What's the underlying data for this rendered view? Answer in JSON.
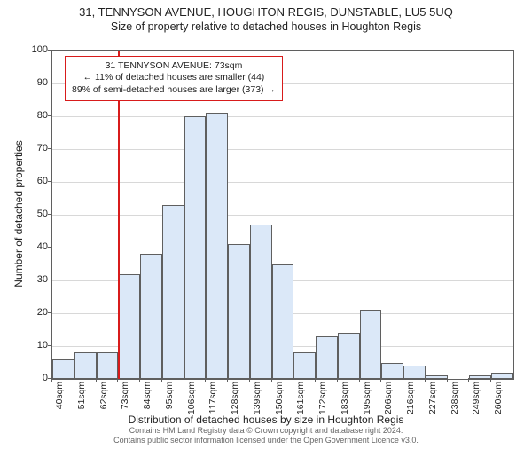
{
  "title": "31, TENNYSON AVENUE, HOUGHTON REGIS, DUNSTABLE, LU5 5UQ",
  "subtitle": "Size of property relative to detached houses in Houghton Regis",
  "ylabel": "Number of detached properties",
  "xlabel": "Distribution of detached houses by size in Houghton Regis",
  "footer_line1": "Contains HM Land Registry data © Crown copyright and database right 2024.",
  "footer_line2": "Contains public sector information licensed under the Open Government Licence v3.0.",
  "callout": {
    "line1": "31 TENNYSON AVENUE: 73sqm",
    "line2": "← 11% of detached houses are smaller (44)",
    "line3": "89% of semi-detached houses are larger (373) →"
  },
  "chart": {
    "type": "histogram",
    "ylim": [
      0,
      100
    ],
    "ytick_step": 10,
    "yticks": [
      0,
      10,
      20,
      30,
      40,
      50,
      60,
      70,
      80,
      90,
      100
    ],
    "x_start": 40,
    "x_step": 11,
    "x_count": 21,
    "x_labels": [
      "40sqm",
      "51sqm",
      "62sqm",
      "73sqm",
      "84sqm",
      "95sqm",
      "106sqm",
      "117sqm",
      "128sqm",
      "139sqm",
      "150sqm",
      "161sqm",
      "172sqm",
      "183sqm",
      "195sqm",
      "206sqm",
      "216sqm",
      "227sqm",
      "238sqm",
      "249sqm",
      "260sqm"
    ],
    "values": [
      6,
      8,
      8,
      32,
      38,
      53,
      80,
      81,
      41,
      47,
      35,
      8,
      13,
      14,
      21,
      5,
      4,
      1,
      0,
      1,
      2
    ],
    "bar_fill": "#dbe8f8",
    "bar_border": "#5f5f5f",
    "grid_color": "#d8d8d8",
    "axis_color": "#5f5f5f",
    "background": "#ffffff",
    "marker_x_value": 73,
    "marker_color": "#d81b1b",
    "title_fontsize": 13,
    "subtitle_fontsize": 12.5,
    "label_fontsize": 12,
    "tick_fontsize": 11
  }
}
